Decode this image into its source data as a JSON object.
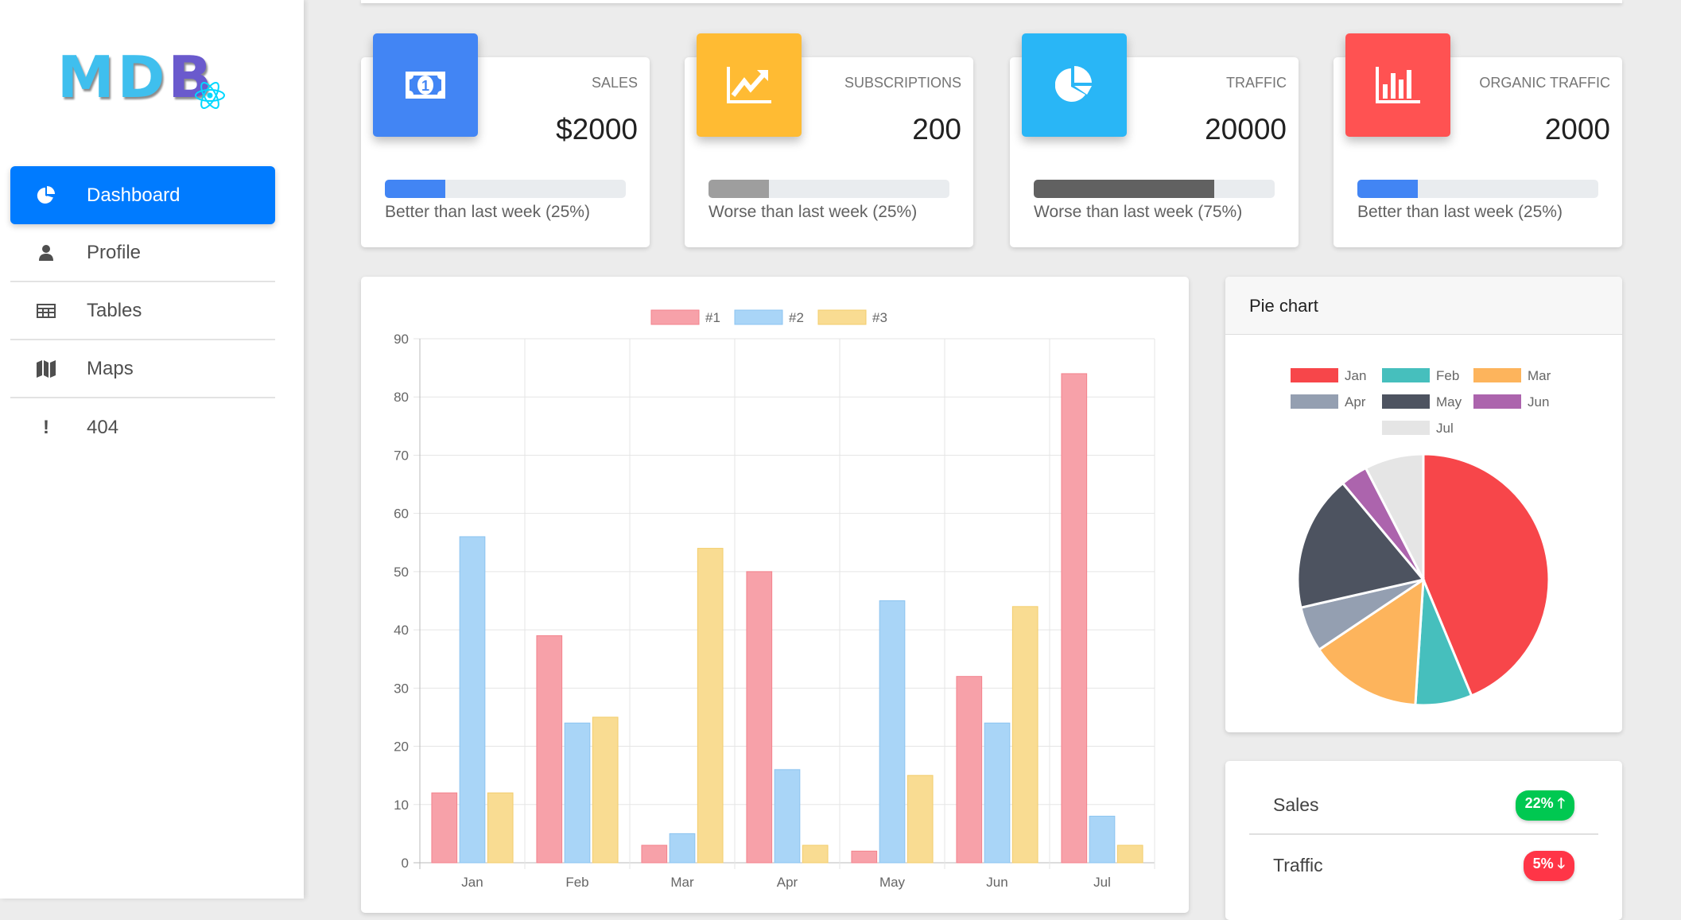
{
  "logo": {
    "text_main": "MD",
    "text_b": "B"
  },
  "sidebar": {
    "items": [
      {
        "label": "Dashboard",
        "icon": "pie-chart-icon",
        "active": true
      },
      {
        "label": "Profile",
        "icon": "user-icon"
      },
      {
        "label": "Tables",
        "icon": "table-icon"
      },
      {
        "label": "Maps",
        "icon": "map-icon"
      },
      {
        "label": "404",
        "icon": "exclamation-icon"
      }
    ]
  },
  "stats": [
    {
      "label": "Sales",
      "value": "$2000",
      "note": "Better than last week (25%)",
      "progress": 25,
      "icon": "money-bill-icon",
      "color": "#4285f4",
      "bar_color": "#4285f4"
    },
    {
      "label": "Subscriptions",
      "value": "200",
      "note": "Worse than last week (25%)",
      "progress": 25,
      "icon": "chart-line-icon",
      "color": "#ffbb33",
      "bar_color": "#9e9e9e"
    },
    {
      "label": "Traffic",
      "value": "20000",
      "note": "Worse than last week (75%)",
      "progress": 75,
      "icon": "chart-pie-icon",
      "color": "#29b6f6",
      "bar_color": "#616161"
    },
    {
      "label": "Organic traffic",
      "value": "2000",
      "note": "Better than last week (25%)",
      "progress": 25,
      "icon": "chart-bar-icon",
      "color": "#ff5252",
      "bar_color": "#4285f4"
    }
  ],
  "chart_data": [
    {
      "type": "bar",
      "categories": [
        "Jan",
        "Feb",
        "Mar",
        "Apr",
        "May",
        "Jun",
        "Jul"
      ],
      "series": [
        {
          "name": "#1",
          "values": [
            12,
            39,
            3,
            50,
            2,
            32,
            84
          ],
          "color": "#f7a1a9",
          "border": "#f3828c"
        },
        {
          "name": "#2",
          "values": [
            56,
            24,
            5,
            16,
            45,
            24,
            8
          ],
          "color": "#a9d5f7",
          "border": "#8cc4f0"
        },
        {
          "name": "#3",
          "values": [
            12,
            25,
            54,
            3,
            15,
            44,
            3
          ],
          "color": "#f9dc92",
          "border": "#f3cd6c"
        }
      ],
      "ylim": [
        0,
        90
      ],
      "yticks": [
        0,
        10,
        20,
        30,
        40,
        50,
        60,
        70,
        80,
        90
      ],
      "legend": "top",
      "grid": true
    },
    {
      "type": "pie",
      "title": "Pie chart",
      "labels": [
        "Jan",
        "Feb",
        "Mar",
        "Apr",
        "May",
        "Jun",
        "Jul"
      ],
      "values": [
        300,
        50,
        100,
        40,
        120,
        24,
        52
      ],
      "colors": [
        "#f7464a",
        "#46bfbd",
        "#fdb45c",
        "#949fb1",
        "#4d5360",
        "#ac64ad",
        "#e5e5e5"
      ],
      "legend": "top"
    }
  ],
  "badges": [
    {
      "label": "Sales",
      "value": "22%",
      "direction": "up",
      "color": "#00c851"
    },
    {
      "label": "Traffic",
      "value": "5%",
      "direction": "down",
      "color": "#ff3547"
    }
  ]
}
